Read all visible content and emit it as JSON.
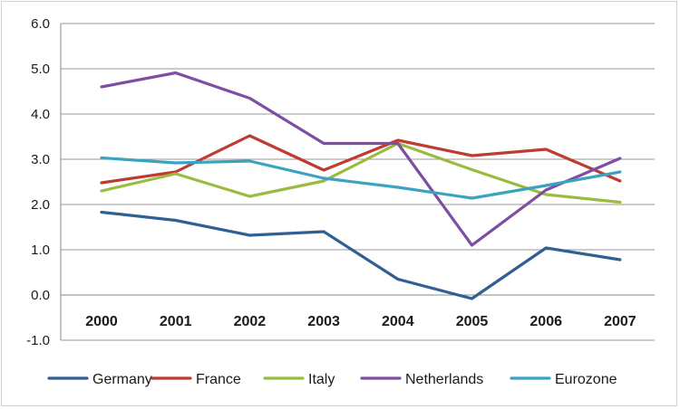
{
  "chart_data": {
    "type": "line",
    "title": "",
    "xlabel": "",
    "ylabel": "",
    "categories": [
      "2000",
      "2001",
      "2002",
      "2003",
      "2004",
      "2005",
      "2006",
      "2007"
    ],
    "ylim": [
      -1.0,
      6.0
    ],
    "yticks": [
      "-1.0",
      "0.0",
      "1.0",
      "2.0",
      "3.0",
      "4.0",
      "5.0",
      "6.0"
    ],
    "grid": "horizontal",
    "legend_position": "bottom",
    "series": [
      {
        "name": "Germany",
        "color": "#2f5f93",
        "values": [
          1.83,
          1.65,
          1.32,
          1.4,
          0.35,
          -0.08,
          1.04,
          0.78
        ]
      },
      {
        "name": "France",
        "color": "#bf3b32",
        "values": [
          2.48,
          2.72,
          3.52,
          2.76,
          3.42,
          3.08,
          3.22,
          2.52
        ]
      },
      {
        "name": "Italy",
        "color": "#9bbb40",
        "values": [
          2.3,
          2.68,
          2.18,
          2.52,
          3.35,
          2.77,
          2.22,
          2.05
        ]
      },
      {
        "name": "Netherlands",
        "color": "#7e4ea3",
        "values": [
          4.6,
          4.91,
          4.35,
          3.35,
          3.35,
          1.1,
          2.32,
          3.02
        ]
      },
      {
        "name": "Eurozone",
        "color": "#3aa3c0",
        "values": [
          3.03,
          2.92,
          2.96,
          2.58,
          2.38,
          2.14,
          2.42,
          2.72
        ]
      }
    ]
  }
}
